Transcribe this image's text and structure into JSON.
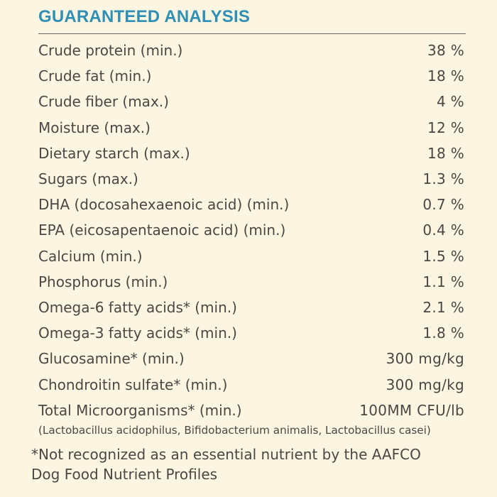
{
  "heading": "GUARANTEED ANALYSIS",
  "rows": [
    {
      "label": "Crude protein (min.)",
      "value": "38 %"
    },
    {
      "label": "Crude fat (min.)",
      "value": "18 %"
    },
    {
      "label": "Crude fiber (max.)",
      "value": "4 %"
    },
    {
      "label": "Moisture (max.)",
      "value": "12 %"
    },
    {
      "label": "Dietary starch (max.)",
      "value": "18 %"
    },
    {
      "label": "Sugars (max.)",
      "value": "1.3 %"
    },
    {
      "label": "DHA (docosahexaenoic acid) (min.)",
      "value": "0.7 %"
    },
    {
      "label": "EPA (eicosapentaenoic acid) (min.)",
      "value": "0.4 %"
    },
    {
      "label": "Calcium (min.)",
      "value": "1.5 %"
    },
    {
      "label": "Phosphorus (min.)",
      "value": "1.1 %"
    },
    {
      "label": "Omega-6 fatty acids* (min.)",
      "value": "2.1 %"
    },
    {
      "label": "Omega-3 fatty acids* (min.)",
      "value": "1.8 %"
    },
    {
      "label": "Glucosamine* (min.)",
      "value": "300 mg/kg"
    },
    {
      "label": "Chondroitin sulfate* (min.)",
      "value": "300 mg/kg"
    },
    {
      "label": "Total Microorganisms* (min.)",
      "value": "100MM CFU/lb"
    }
  ],
  "microorganisms_note": "(Lactobacillus acidophilus, Bifidobacterium animalis, Lactobacillus casei)",
  "footnote_line1": "*Not recognized as an essential nutrient by the AAFCO",
  "footnote_line2": "Dog Food Nutrient Profiles",
  "colors": {
    "background": "#fcf5e1",
    "heading": "#2f8fb5",
    "text": "#4d4643"
  }
}
